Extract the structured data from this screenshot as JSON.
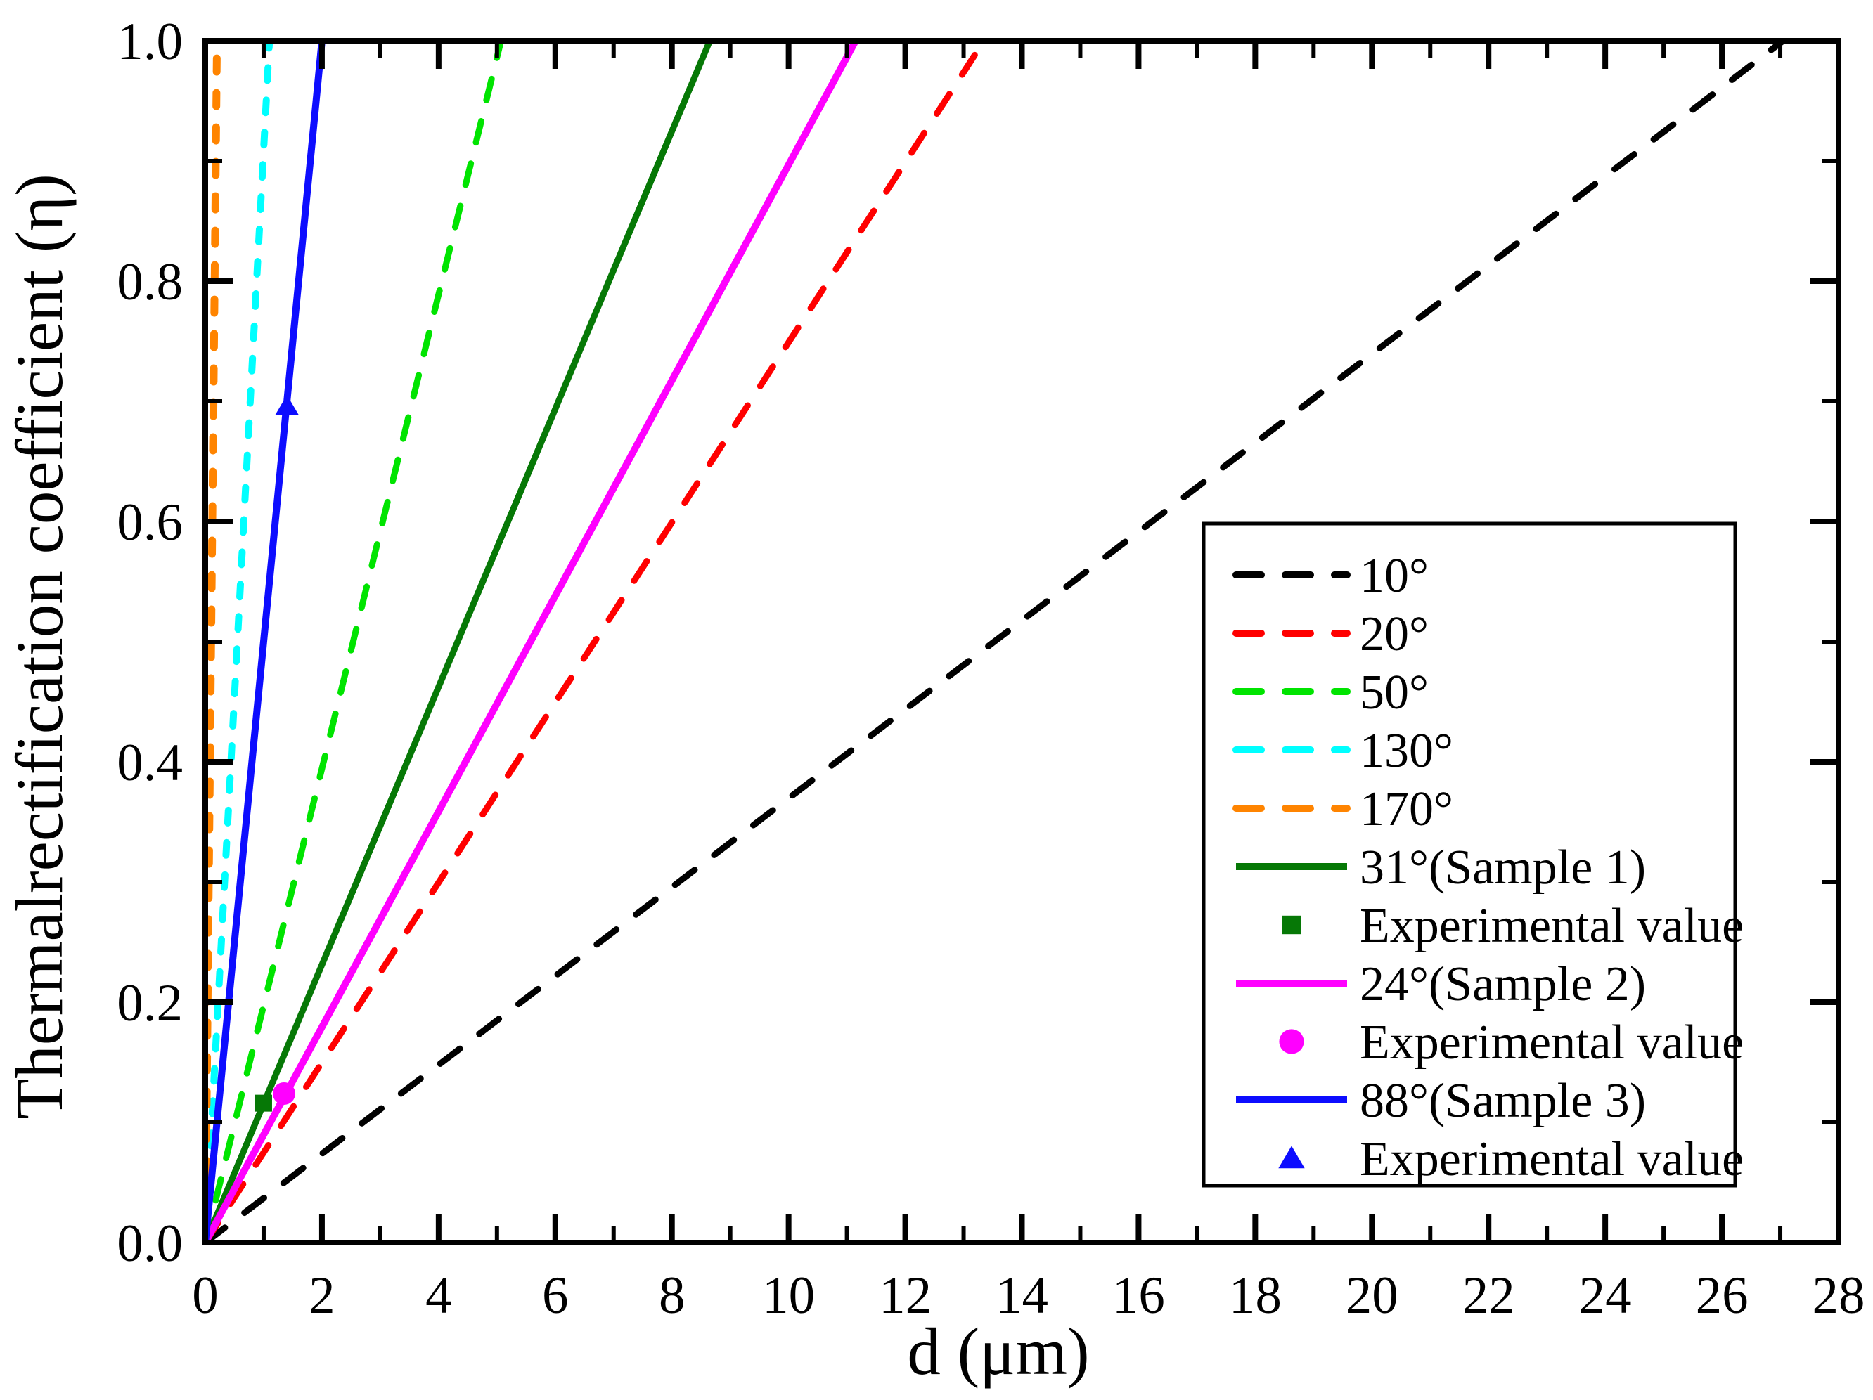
{
  "figure": {
    "background": "#ffffff"
  },
  "chart_data": {
    "type": "line",
    "title": "",
    "xlabel": "d (μm)",
    "ylabel": "Thermalrectification coefficient (η)",
    "x_axis": {
      "label": "d (μm)",
      "min": 0,
      "max": 28,
      "major_step": 2,
      "minor_step": 1,
      "tick_labels": [
        "0",
        "2",
        "4",
        "6",
        "8",
        "10",
        "12",
        "14",
        "16",
        "18",
        "20",
        "22",
        "24",
        "26",
        "28"
      ]
    },
    "y_axis": {
      "label": "Thermalrectification coefficient (η)",
      "min": 0.0,
      "max": 1.0,
      "major_step": 0.2,
      "minor_step": 0.1,
      "tick_labels": [
        "0.0",
        "0.2",
        "0.4",
        "0.6",
        "0.8",
        "1.0"
      ]
    },
    "grid": false,
    "series": [
      {
        "name": "10°",
        "color": "#000000",
        "style": "dashed",
        "width": 9,
        "dash": [
          35,
          35
        ],
        "points": [
          [
            0,
            0
          ],
          [
            27.05,
            1.0
          ]
        ]
      },
      {
        "name": "20°",
        "color": "#ff0000",
        "style": "dashed",
        "width": 9,
        "dash": [
          33,
          33
        ],
        "points": [
          [
            0,
            0
          ],
          [
            13.35,
            1.0
          ]
        ]
      },
      {
        "name": "50°",
        "color": "#00e400",
        "style": "dashed",
        "width": 9,
        "dash": [
          31,
          31
        ],
        "points": [
          [
            0,
            0
          ],
          [
            5.07,
            1.0
          ]
        ]
      },
      {
        "name": "130°",
        "color": "#00ffff",
        "style": "dashed",
        "width": 10,
        "dash": [
          18,
          28
        ],
        "points": [
          [
            0,
            0
          ],
          [
            1.1,
            1.0
          ]
        ]
      },
      {
        "name": "170°",
        "color": "#ff8400",
        "style": "dashed",
        "width": 11,
        "dash": [
          19,
          30
        ],
        "points": [
          [
            0,
            0
          ],
          [
            0.2,
            1.0
          ]
        ]
      },
      {
        "name": "31°(Sample 1)",
        "color": "#067806",
        "style": "solid",
        "width": 9,
        "points": [
          [
            0,
            0
          ],
          [
            8.65,
            1.0
          ]
        ]
      },
      {
        "name": "24°(Sample 2)",
        "color": "#ff00ff",
        "style": "solid",
        "width": 10,
        "points": [
          [
            0,
            0
          ],
          [
            11.15,
            1.0
          ]
        ]
      },
      {
        "name": "88°(Sample 3)",
        "color": "#0d0dff",
        "style": "solid",
        "width": 10,
        "points": [
          [
            0,
            0
          ],
          [
            2.0,
            1.0
          ]
        ]
      }
    ],
    "experimental_points": [
      {
        "series": "31°(Sample 1)",
        "marker": "square",
        "color": "#067806",
        "x": 1.0,
        "y": 0.116
      },
      {
        "series": "24°(Sample 2)",
        "marker": "circle",
        "color": "#ff00ff",
        "x": 1.35,
        "y": 0.124
      },
      {
        "series": "88°(Sample 3)",
        "marker": "triangle",
        "color": "#0d0dff",
        "x": 1.4,
        "y": 0.696
      }
    ],
    "legend": {
      "position": "right-center",
      "entries": [
        {
          "sample": "dashed-line",
          "color": "#000000",
          "label": "10°"
        },
        {
          "sample": "dashed-line",
          "color": "#ff0000",
          "label": "20°"
        },
        {
          "sample": "dashed-line",
          "color": "#00e400",
          "label": "50°"
        },
        {
          "sample": "dashed-line",
          "color": "#00ffff",
          "label": "130°"
        },
        {
          "sample": "dashed-line",
          "color": "#ff8400",
          "label": "170°"
        },
        {
          "sample": "solid-line",
          "color": "#067806",
          "label": "31°(Sample 1)"
        },
        {
          "sample": "square-marker",
          "color": "#067806",
          "label": "Experimental value"
        },
        {
          "sample": "solid-line",
          "color": "#ff00ff",
          "label": "24°(Sample 2)"
        },
        {
          "sample": "circle-marker",
          "color": "#ff00ff",
          "label": "Experimental value"
        },
        {
          "sample": "solid-line",
          "color": "#0d0dff",
          "label": "88°(Sample 3)"
        },
        {
          "sample": "triangle-marker",
          "color": "#0d0dff",
          "label": "Experimental value"
        }
      ]
    }
  }
}
